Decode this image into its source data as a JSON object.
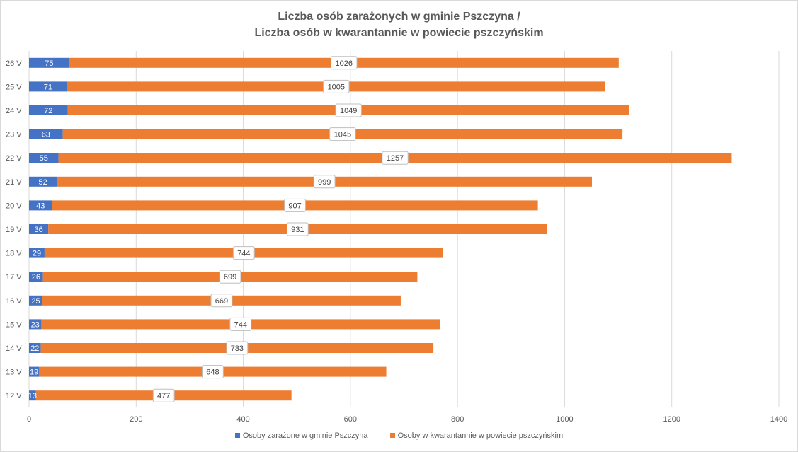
{
  "chart_data": {
    "type": "bar",
    "orientation": "horizontal",
    "stacked": true,
    "title_lines": [
      "Liczba osób zarażonych w gminie Pszczyna /",
      "Liczba osób w kwarantannie w powiecie pszczyńskim"
    ],
    "categories": [
      "12 V",
      "13 V",
      "14 V",
      "15 V",
      "16 V",
      "17 V",
      "18 V",
      "19 V",
      "20 V",
      "21 V",
      "22 V",
      "23 V",
      "24 V",
      "25 V",
      "26 V"
    ],
    "series": [
      {
        "name": "Osoby zarażone w gminie Pszczyna",
        "color": "#4472c4",
        "values": [
          13,
          19,
          22,
          23,
          25,
          26,
          29,
          36,
          43,
          52,
          55,
          63,
          72,
          71,
          75
        ]
      },
      {
        "name": "Osoby w kwarantannie w powiecie pszczyńskim",
        "color": "#ed7d31",
        "values": [
          477,
          648,
          733,
          744,
          669,
          699,
          744,
          931,
          907,
          999,
          1257,
          1045,
          1049,
          1005,
          1026
        ]
      }
    ],
    "xlim": [
      0,
      1400
    ],
    "xticks": [
      0,
      200,
      400,
      600,
      800,
      1000,
      1200,
      1400
    ],
    "grid": "vertical",
    "legend_position": "bottom"
  }
}
